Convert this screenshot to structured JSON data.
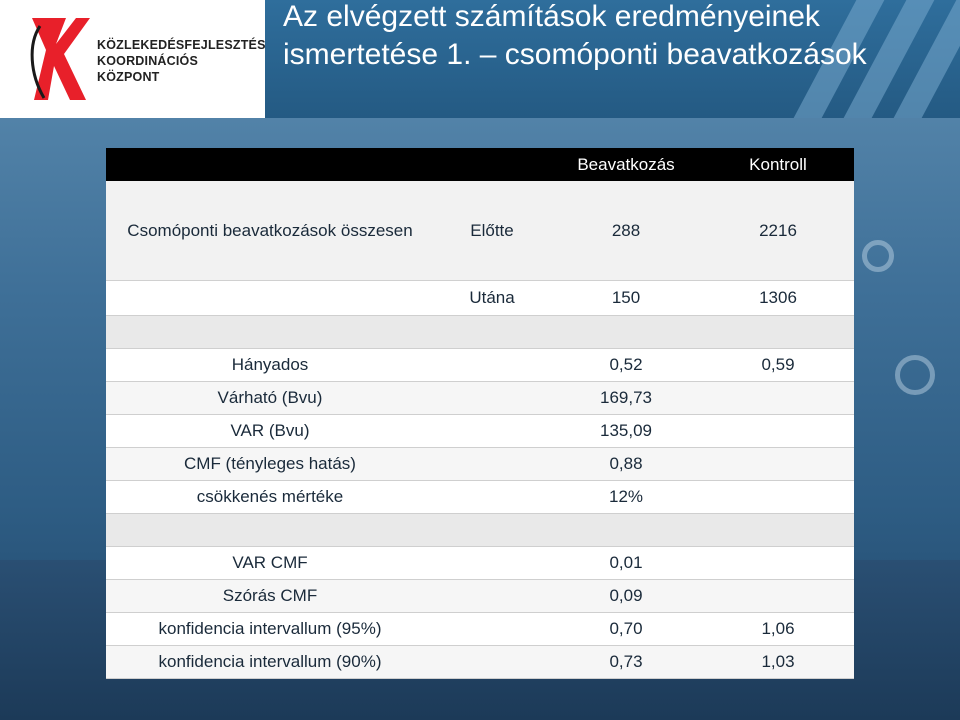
{
  "header": {
    "org_line1": "KÖZLEKEDÉSFEJLESZTÉSI",
    "org_line2": "KOORDINÁCIÓS",
    "org_line3": "KÖZPONT",
    "title": "Az elvégzett számítások eredményeinek ismertetése 1. – csomóponti beavatkozások",
    "logo_color": "#e8202a"
  },
  "table": {
    "col_beavatkozas": "Beavatkozás",
    "col_kontroll": "Kontroll",
    "row_total_label": "Csomóponti beavatkozások összesen",
    "row_elotte": {
      "label": "Előtte",
      "beavatkozas": "288",
      "kontroll": "2216"
    },
    "row_utana": {
      "label": "Utána",
      "beavatkozas": "150",
      "kontroll": "1306"
    },
    "hanyados": {
      "label": "Hányados",
      "beavatkozas": "0,52",
      "kontroll": "0,59"
    },
    "varhato": {
      "label": "Várható (Bvu)",
      "beavatkozas": "169,73"
    },
    "var": {
      "label": "VAR (Bvu)",
      "beavatkozas": "135,09"
    },
    "cmf": {
      "label": "CMF (tényleges hatás)",
      "beavatkozas": "0,88"
    },
    "csokkenes": {
      "label": "csökkenés mértéke",
      "beavatkozas": "12%"
    },
    "var_cmf": {
      "label": "VAR CMF",
      "beavatkozas": "0,01"
    },
    "szoras": {
      "label": "Szórás CMF",
      "beavatkozas": "0,09"
    },
    "konf95": {
      "label": "konfidencia intervallum (95%)",
      "low": "0,70",
      "high": "1,06"
    },
    "konf90": {
      "label": "konfidencia intervallum (90%)",
      "low": "0,73",
      "high": "1,03"
    }
  }
}
